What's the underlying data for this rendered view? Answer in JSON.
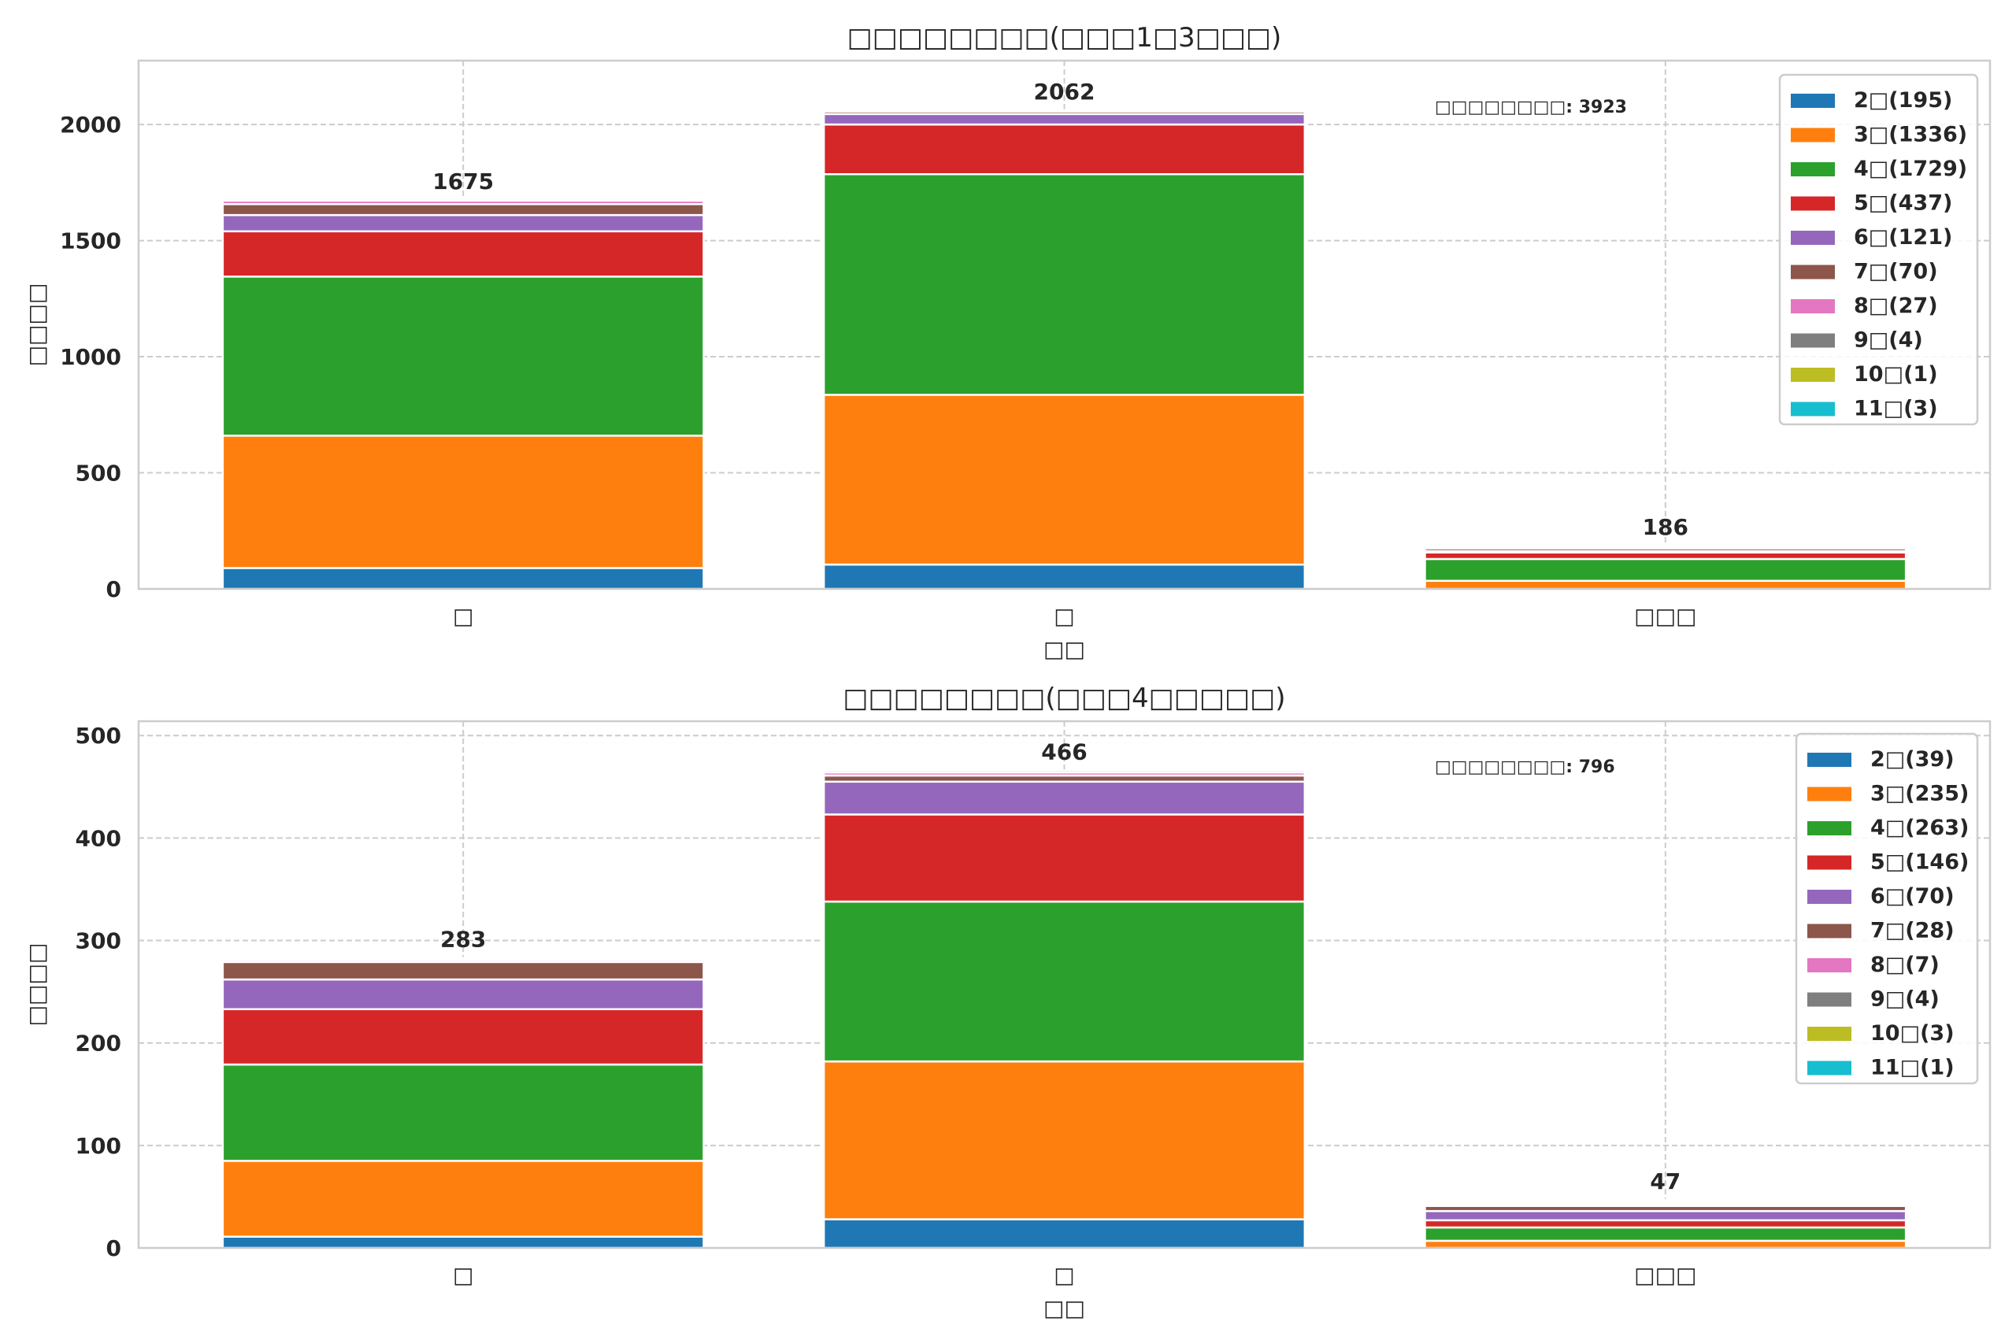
{
  "colors": [
    "#1f77b4",
    "#ff7f0e",
    "#2ca02c",
    "#d62728",
    "#9467bd",
    "#8c564b",
    "#e377c2",
    "#7f7f7f",
    "#bcbd22",
    "#17becf"
  ],
  "chart_data": [
    {
      "type": "bar",
      "stacked": true,
      "title": "□□□□□□□□(□□□1□3□□□)",
      "xlabel": "□□",
      "ylabel": "□□□□",
      "categories": [
        "□",
        "□",
        "□□□"
      ],
      "ylim": [
        0,
        2275
      ],
      "yticks": [
        0,
        500,
        1000,
        1500,
        2000
      ],
      "grid": true,
      "legend_position": "top-right",
      "annotation": "□□□□□□□□: 3923",
      "totals": [
        1675,
        2062,
        186
      ],
      "series": [
        {
          "name": "2□(195)",
          "values": [
            90,
            105,
            0
          ]
        },
        {
          "name": "3□(1336)",
          "values": [
            570,
            731,
            35
          ]
        },
        {
          "name": "4□(1729)",
          "values": [
            685,
            950,
            94
          ]
        },
        {
          "name": "5□(437)",
          "values": [
            195,
            214,
            28
          ]
        },
        {
          "name": "6□(121)",
          "values": [
            70,
            45,
            6
          ]
        },
        {
          "name": "7□(70)",
          "values": [
            47,
            11,
            12
          ]
        },
        {
          "name": "8□(27)",
          "values": [
            15,
            4,
            8
          ]
        },
        {
          "name": "9□(4)",
          "values": [
            2,
            1,
            1
          ]
        },
        {
          "name": "10□(1)",
          "values": [
            0,
            0,
            1
          ]
        },
        {
          "name": "11□(3)",
          "values": [
            1,
            1,
            1
          ]
        }
      ]
    },
    {
      "type": "bar",
      "stacked": true,
      "title": "□□□□□□□□(□□□4□□□□□)",
      "xlabel": "□□",
      "ylabel": "□□□□",
      "categories": [
        "□",
        "□",
        "□□□"
      ],
      "ylim": [
        0,
        514
      ],
      "yticks": [
        0,
        100,
        200,
        300,
        400,
        500
      ],
      "grid": true,
      "legend_position": "top-right",
      "annotation": "□□□□□□□□: 796",
      "totals": [
        283,
        466,
        47
      ],
      "series": [
        {
          "name": "2□(39)",
          "values": [
            11,
            28,
            0
          ]
        },
        {
          "name": "3□(235)",
          "values": [
            74,
            154,
            7
          ]
        },
        {
          "name": "4□(263)",
          "values": [
            94,
            156,
            13
          ]
        },
        {
          "name": "5□(146)",
          "values": [
            54,
            85,
            7
          ]
        },
        {
          "name": "6□(70)",
          "values": [
            29,
            32,
            9
          ]
        },
        {
          "name": "7□(28)",
          "values": [
            17,
            6,
            5
          ]
        },
        {
          "name": "8□(7)",
          "values": [
            2,
            3,
            2
          ]
        },
        {
          "name": "9□(4)",
          "values": [
            1,
            2,
            1
          ]
        },
        {
          "name": "10□(3)",
          "values": [
            1,
            0,
            2
          ]
        },
        {
          "name": "11□(1)",
          "values": [
            0,
            0,
            1
          ]
        }
      ]
    }
  ]
}
